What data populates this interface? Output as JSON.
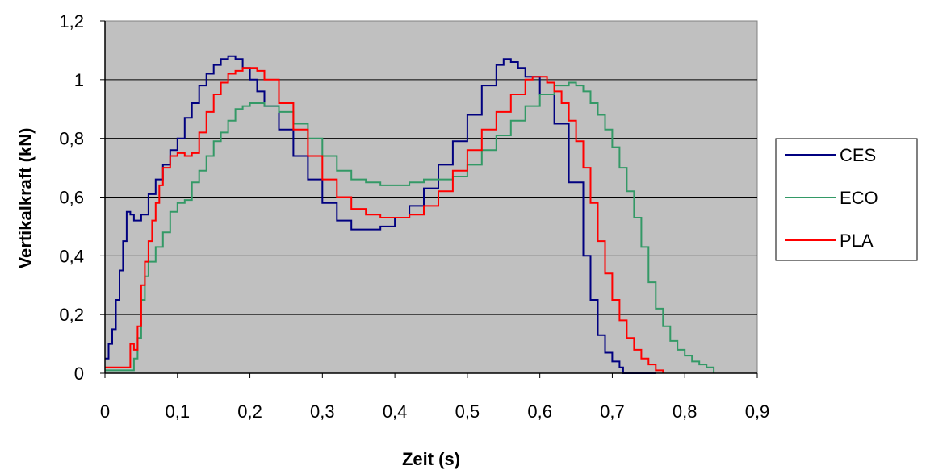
{
  "chart_data": {
    "type": "line",
    "title": "",
    "xlabel": "Zeit (s)",
    "ylabel": "Vertikalkraft (kN)",
    "xlim": [
      0,
      0.9
    ],
    "ylim": [
      0,
      1.2
    ],
    "xticks": [
      0,
      0.1,
      0.2,
      0.3,
      0.4,
      0.5,
      0.6,
      0.7,
      0.8,
      0.9
    ],
    "xtick_labels": [
      "0",
      "0,1",
      "0,2",
      "0,3",
      "0,4",
      "0,5",
      "0,6",
      "0,7",
      "0,8",
      "0,9"
    ],
    "yticks": [
      0,
      0.2,
      0.4,
      0.6,
      0.8,
      1.0,
      1.2
    ],
    "ytick_labels": [
      "0",
      "0,2",
      "0,4",
      "0,6",
      "0,8",
      "1",
      "1,2"
    ],
    "grid": "horizontal",
    "plot_background": "#c0c0c0",
    "legend_position": "right",
    "series": [
      {
        "name": "CES",
        "color": "#000080",
        "points": [
          [
            0.0,
            0.05
          ],
          [
            0.005,
            0.1
          ],
          [
            0.01,
            0.15
          ],
          [
            0.015,
            0.25
          ],
          [
            0.02,
            0.35
          ],
          [
            0.025,
            0.45
          ],
          [
            0.03,
            0.55
          ],
          [
            0.035,
            0.54
          ],
          [
            0.04,
            0.52
          ],
          [
            0.05,
            0.54
          ],
          [
            0.06,
            0.61
          ],
          [
            0.07,
            0.66
          ],
          [
            0.08,
            0.71
          ],
          [
            0.09,
            0.76
          ],
          [
            0.1,
            0.8
          ],
          [
            0.11,
            0.87
          ],
          [
            0.12,
            0.92
          ],
          [
            0.13,
            0.98
          ],
          [
            0.14,
            1.02
          ],
          [
            0.15,
            1.05
          ],
          [
            0.16,
            1.07
          ],
          [
            0.17,
            1.08
          ],
          [
            0.18,
            1.07
          ],
          [
            0.19,
            1.04
          ],
          [
            0.2,
            1.0
          ],
          [
            0.21,
            0.96
          ],
          [
            0.22,
            0.91
          ],
          [
            0.24,
            0.83
          ],
          [
            0.26,
            0.74
          ],
          [
            0.28,
            0.66
          ],
          [
            0.3,
            0.58
          ],
          [
            0.32,
            0.52
          ],
          [
            0.34,
            0.49
          ],
          [
            0.36,
            0.49
          ],
          [
            0.38,
            0.5
          ],
          [
            0.4,
            0.53
          ],
          [
            0.42,
            0.57
          ],
          [
            0.44,
            0.63
          ],
          [
            0.46,
            0.71
          ],
          [
            0.48,
            0.79
          ],
          [
            0.5,
            0.88
          ],
          [
            0.52,
            0.98
          ],
          [
            0.54,
            1.05
          ],
          [
            0.55,
            1.07
          ],
          [
            0.56,
            1.06
          ],
          [
            0.57,
            1.04
          ],
          [
            0.58,
            1.01
          ],
          [
            0.6,
            0.95
          ],
          [
            0.62,
            0.85
          ],
          [
            0.64,
            0.65
          ],
          [
            0.66,
            0.4
          ],
          [
            0.67,
            0.25
          ],
          [
            0.68,
            0.13
          ],
          [
            0.69,
            0.07
          ],
          [
            0.7,
            0.04
          ],
          [
            0.71,
            0.02
          ],
          [
            0.715,
            0.0
          ],
          [
            0.76,
            0.0
          ]
        ]
      },
      {
        "name": "ECO",
        "color": "#339966",
        "points": [
          [
            0.0,
            0.01
          ],
          [
            0.03,
            0.01
          ],
          [
            0.04,
            0.05
          ],
          [
            0.045,
            0.12
          ],
          [
            0.05,
            0.25
          ],
          [
            0.055,
            0.33
          ],
          [
            0.06,
            0.38
          ],
          [
            0.07,
            0.43
          ],
          [
            0.08,
            0.48
          ],
          [
            0.09,
            0.55
          ],
          [
            0.1,
            0.58
          ],
          [
            0.11,
            0.59
          ],
          [
            0.12,
            0.65
          ],
          [
            0.13,
            0.69
          ],
          [
            0.14,
            0.74
          ],
          [
            0.15,
            0.79
          ],
          [
            0.16,
            0.82
          ],
          [
            0.17,
            0.86
          ],
          [
            0.18,
            0.9
          ],
          [
            0.19,
            0.91
          ],
          [
            0.2,
            0.92
          ],
          [
            0.21,
            0.92
          ],
          [
            0.22,
            0.91
          ],
          [
            0.24,
            0.89
          ],
          [
            0.26,
            0.85
          ],
          [
            0.28,
            0.8
          ],
          [
            0.3,
            0.74
          ],
          [
            0.32,
            0.69
          ],
          [
            0.34,
            0.66
          ],
          [
            0.36,
            0.65
          ],
          [
            0.38,
            0.64
          ],
          [
            0.4,
            0.64
          ],
          [
            0.42,
            0.65
          ],
          [
            0.44,
            0.66
          ],
          [
            0.46,
            0.66
          ],
          [
            0.48,
            0.67
          ],
          [
            0.5,
            0.71
          ],
          [
            0.52,
            0.76
          ],
          [
            0.54,
            0.81
          ],
          [
            0.56,
            0.86
          ],
          [
            0.58,
            0.91
          ],
          [
            0.6,
            0.95
          ],
          [
            0.62,
            0.98
          ],
          [
            0.64,
            0.99
          ],
          [
            0.65,
            0.98
          ],
          [
            0.66,
            0.96
          ],
          [
            0.67,
            0.92
          ],
          [
            0.68,
            0.88
          ],
          [
            0.69,
            0.83
          ],
          [
            0.7,
            0.77
          ],
          [
            0.71,
            0.7
          ],
          [
            0.72,
            0.62
          ],
          [
            0.73,
            0.53
          ],
          [
            0.74,
            0.43
          ],
          [
            0.75,
            0.31
          ],
          [
            0.76,
            0.22
          ],
          [
            0.77,
            0.16
          ],
          [
            0.78,
            0.11
          ],
          [
            0.79,
            0.08
          ],
          [
            0.8,
            0.06
          ],
          [
            0.81,
            0.04
          ],
          [
            0.82,
            0.03
          ],
          [
            0.83,
            0.02
          ],
          [
            0.84,
            0.0
          ]
        ]
      },
      {
        "name": "PLA",
        "color": "#ff0000",
        "points": [
          [
            0.0,
            0.02
          ],
          [
            0.03,
            0.02
          ],
          [
            0.035,
            0.1
          ],
          [
            0.04,
            0.08
          ],
          [
            0.045,
            0.16
          ],
          [
            0.05,
            0.3
          ],
          [
            0.055,
            0.38
          ],
          [
            0.06,
            0.45
          ],
          [
            0.065,
            0.52
          ],
          [
            0.07,
            0.58
          ],
          [
            0.075,
            0.64
          ],
          [
            0.08,
            0.7
          ],
          [
            0.09,
            0.74
          ],
          [
            0.1,
            0.75
          ],
          [
            0.11,
            0.74
          ],
          [
            0.12,
            0.75
          ],
          [
            0.13,
            0.82
          ],
          [
            0.14,
            0.89
          ],
          [
            0.15,
            0.95
          ],
          [
            0.16,
            0.99
          ],
          [
            0.17,
            1.02
          ],
          [
            0.18,
            1.03
          ],
          [
            0.19,
            1.04
          ],
          [
            0.2,
            1.04
          ],
          [
            0.21,
            1.03
          ],
          [
            0.22,
            1.0
          ],
          [
            0.24,
            0.92
          ],
          [
            0.26,
            0.83
          ],
          [
            0.28,
            0.74
          ],
          [
            0.3,
            0.66
          ],
          [
            0.32,
            0.6
          ],
          [
            0.34,
            0.56
          ],
          [
            0.36,
            0.54
          ],
          [
            0.38,
            0.53
          ],
          [
            0.4,
            0.53
          ],
          [
            0.42,
            0.54
          ],
          [
            0.44,
            0.57
          ],
          [
            0.46,
            0.62
          ],
          [
            0.48,
            0.69
          ],
          [
            0.5,
            0.76
          ],
          [
            0.52,
            0.83
          ],
          [
            0.54,
            0.89
          ],
          [
            0.56,
            0.95
          ],
          [
            0.58,
            1.0
          ],
          [
            0.59,
            1.01
          ],
          [
            0.6,
            1.01
          ],
          [
            0.61,
            0.99
          ],
          [
            0.62,
            0.96
          ],
          [
            0.63,
            0.92
          ],
          [
            0.64,
            0.86
          ],
          [
            0.65,
            0.79
          ],
          [
            0.66,
            0.7
          ],
          [
            0.67,
            0.58
          ],
          [
            0.68,
            0.45
          ],
          [
            0.69,
            0.34
          ],
          [
            0.7,
            0.25
          ],
          [
            0.71,
            0.18
          ],
          [
            0.72,
            0.12
          ],
          [
            0.73,
            0.08
          ],
          [
            0.74,
            0.05
          ],
          [
            0.75,
            0.03
          ],
          [
            0.76,
            0.01
          ],
          [
            0.77,
            0.0
          ]
        ]
      }
    ]
  }
}
